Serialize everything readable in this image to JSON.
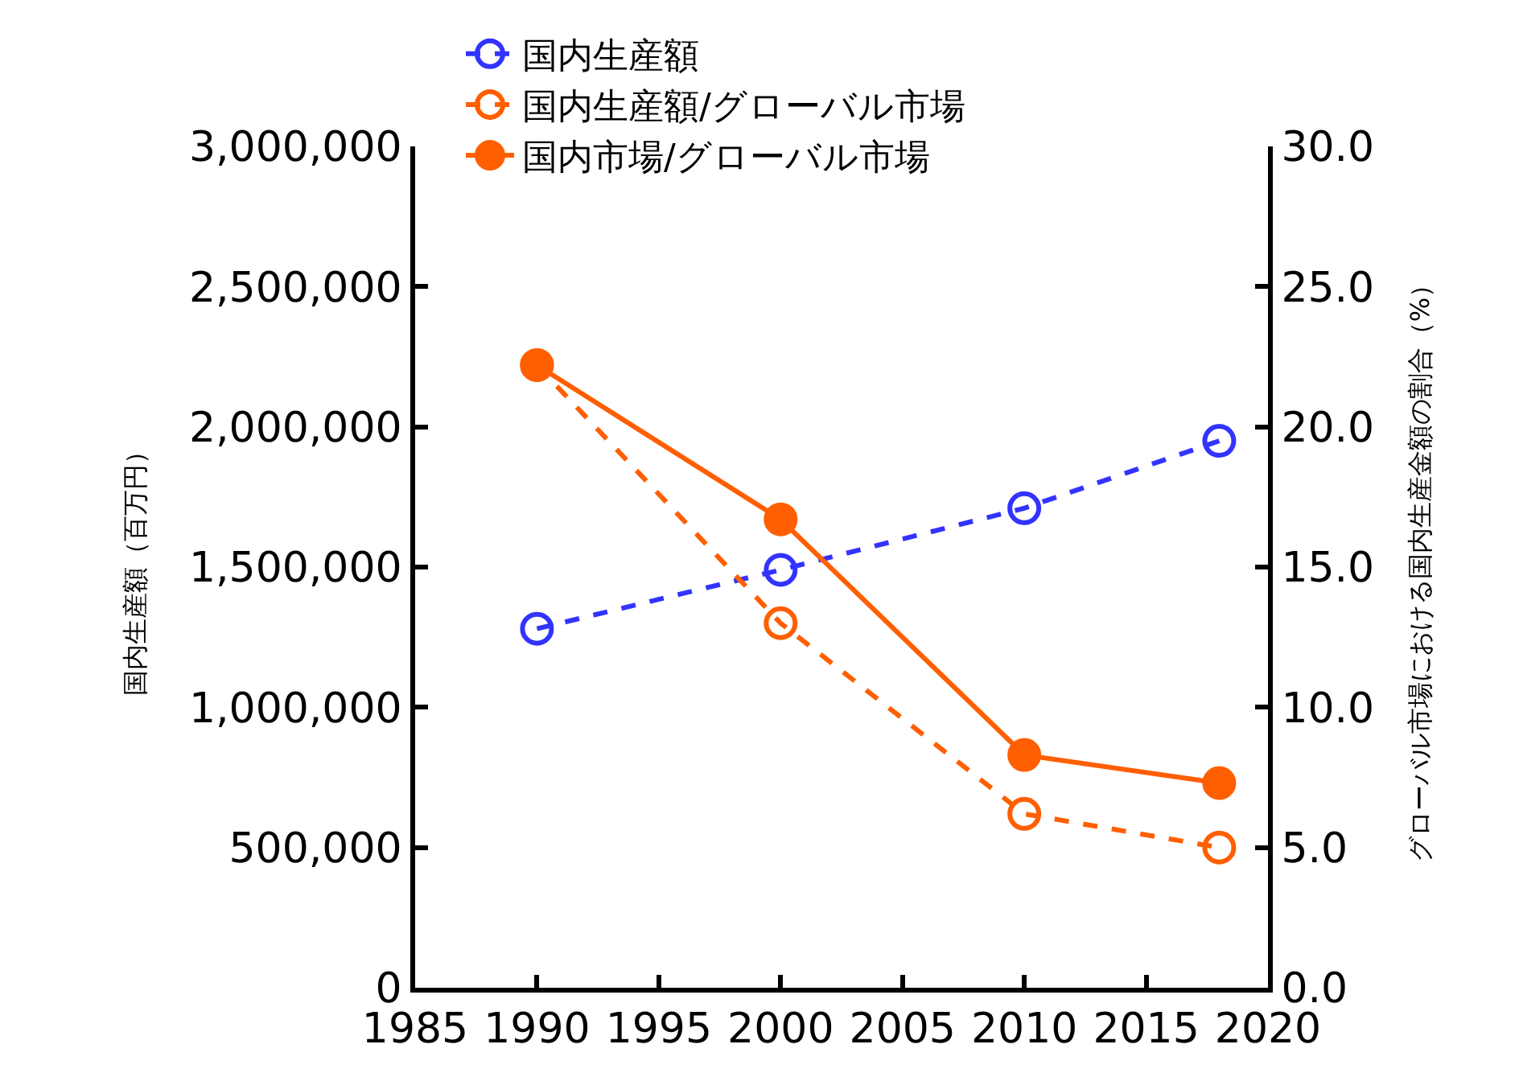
{
  "chart_data": {
    "type": "line",
    "ylabel": "国内生産額（百万円）",
    "y2label": "グローバル市場における国内生産金額の割合（%）",
    "x": [
      1990,
      2000,
      2010,
      2018
    ],
    "series": [
      {
        "name": "国内生産額",
        "color": "#3333ff",
        "values": [
          1280000,
          1490000,
          1710000,
          1950000
        ],
        "line_style": "dashed"
      },
      {
        "name": "国内生産額/グローバル市場",
        "color": "#ff5f00",
        "values": [
          22.2,
          13.0,
          6.2,
          5.0
        ],
        "axis": "y2",
        "line_style": "dashed"
      },
      {
        "name": "国内市場/グローバル市場",
        "color": "#ff5f00",
        "values": [
          22.2,
          16.7,
          8.3,
          7.3
        ],
        "axis": "y2",
        "line_style": "solid"
      }
    ],
    "xlim": [
      1985,
      2020
    ],
    "xticks": [
      1985,
      1990,
      1995,
      2000,
      2005,
      2010,
      2015,
      2020
    ],
    "ylim": [
      0,
      3000000
    ],
    "yticks": [
      {
        "value": 0,
        "label": "0"
      },
      {
        "value": 500000,
        "label": "500,000"
      },
      {
        "value": 1000000,
        "label": "1,000,000"
      },
      {
        "value": 1500000,
        "label": "1,500,000"
      },
      {
        "value": 2000000,
        "label": "2,000,000"
      },
      {
        "value": 2500000,
        "label": "2,500,000"
      },
      {
        "value": 3000000,
        "label": "3,000,000"
      }
    ],
    "y2lim": [
      0,
      30
    ],
    "y2ticks": [
      {
        "value": 0,
        "label": "0.0"
      },
      {
        "value": 5,
        "label": "5.0"
      },
      {
        "value": 10,
        "label": "10.0"
      },
      {
        "value": 15,
        "label": "15.0"
      },
      {
        "value": 20,
        "label": "20.0"
      },
      {
        "value": 25,
        "label": "25.0"
      },
      {
        "value": 30,
        "label": "30.0"
      }
    ],
    "marker": "circle",
    "grid": false,
    "legend": "top left"
  }
}
